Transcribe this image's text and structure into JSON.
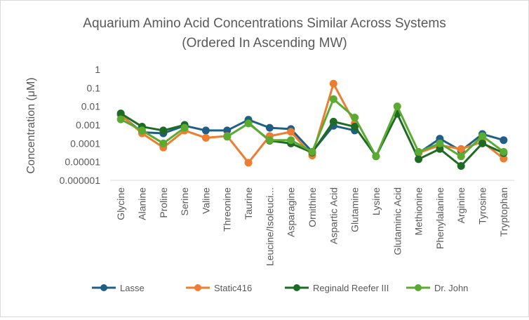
{
  "chart_data": {
    "type": "line",
    "title": "Aquarium Amino Acid Concentrations Similar  Across Systems",
    "subtitle": "(Ordered In Ascending MW)",
    "xlabel": "",
    "ylabel": "Concentration (μM)",
    "yscale": "log",
    "ylim": [
      1e-06,
      1
    ],
    "ytick_labels": [
      "1",
      "0.1",
      "0.01",
      "0.001",
      "0.0001",
      "0.00001",
      "0.000001"
    ],
    "grid": false,
    "legend_position": "bottom",
    "categories": [
      "Glycine",
      "Alanine",
      "Proline",
      "Serine",
      "Valine",
      "Threonine",
      "Taurine",
      "Leucine/Isoleuci...",
      "Asparagine",
      "Ornithine",
      "Aspartic Acid",
      "Glutamine",
      "Lysine",
      "Glutaminic Acid",
      "Methionine",
      "Phenylalanine",
      "Arginine",
      "Tyrosine",
      "Tryptophan"
    ],
    "series": [
      {
        "name": "Lasse",
        "color": "#1f5f86",
        "values": [
          0.0035,
          0.0004,
          0.00035,
          0.0009,
          0.0005,
          0.0005,
          0.0019,
          0.0007,
          0.0006,
          3.5e-05,
          0.0009,
          0.0005,
          null,
          null,
          3e-05,
          0.00018,
          4e-05,
          0.00032,
          0.00015
        ]
      },
      {
        "name": "Static416",
        "color": "#ed7d31",
        "values": [
          0.0035,
          0.00035,
          6e-05,
          0.0005,
          0.0002,
          0.00025,
          9e-06,
          0.00025,
          0.00042,
          2.2e-05,
          0.17,
          0.0012,
          null,
          null,
          3e-05,
          8e-05,
          5e-05,
          0.00012,
          1.5e-05
        ]
      },
      {
        "name": "Reginald Reefer III",
        "color": "#1e6b24",
        "values": [
          0.0042,
          0.0008,
          0.0005,
          0.001,
          null,
          null,
          0.0013,
          0.00014,
          0.0001,
          3.2e-05,
          0.0015,
          0.0008,
          2e-05,
          0.004,
          1.4e-05,
          5e-05,
          6e-06,
          0.0001,
          3e-05
        ]
      },
      {
        "name": "Dr. John",
        "color": "#5bab33",
        "values": [
          0.002,
          0.0005,
          0.0001,
          0.0007,
          null,
          0.00023,
          0.0012,
          0.00015,
          0.00015,
          3.5e-05,
          0.025,
          0.0025,
          2e-05,
          0.01,
          3.5e-05,
          0.0001,
          2e-05,
          0.00025,
          3.5e-05
        ]
      }
    ]
  }
}
